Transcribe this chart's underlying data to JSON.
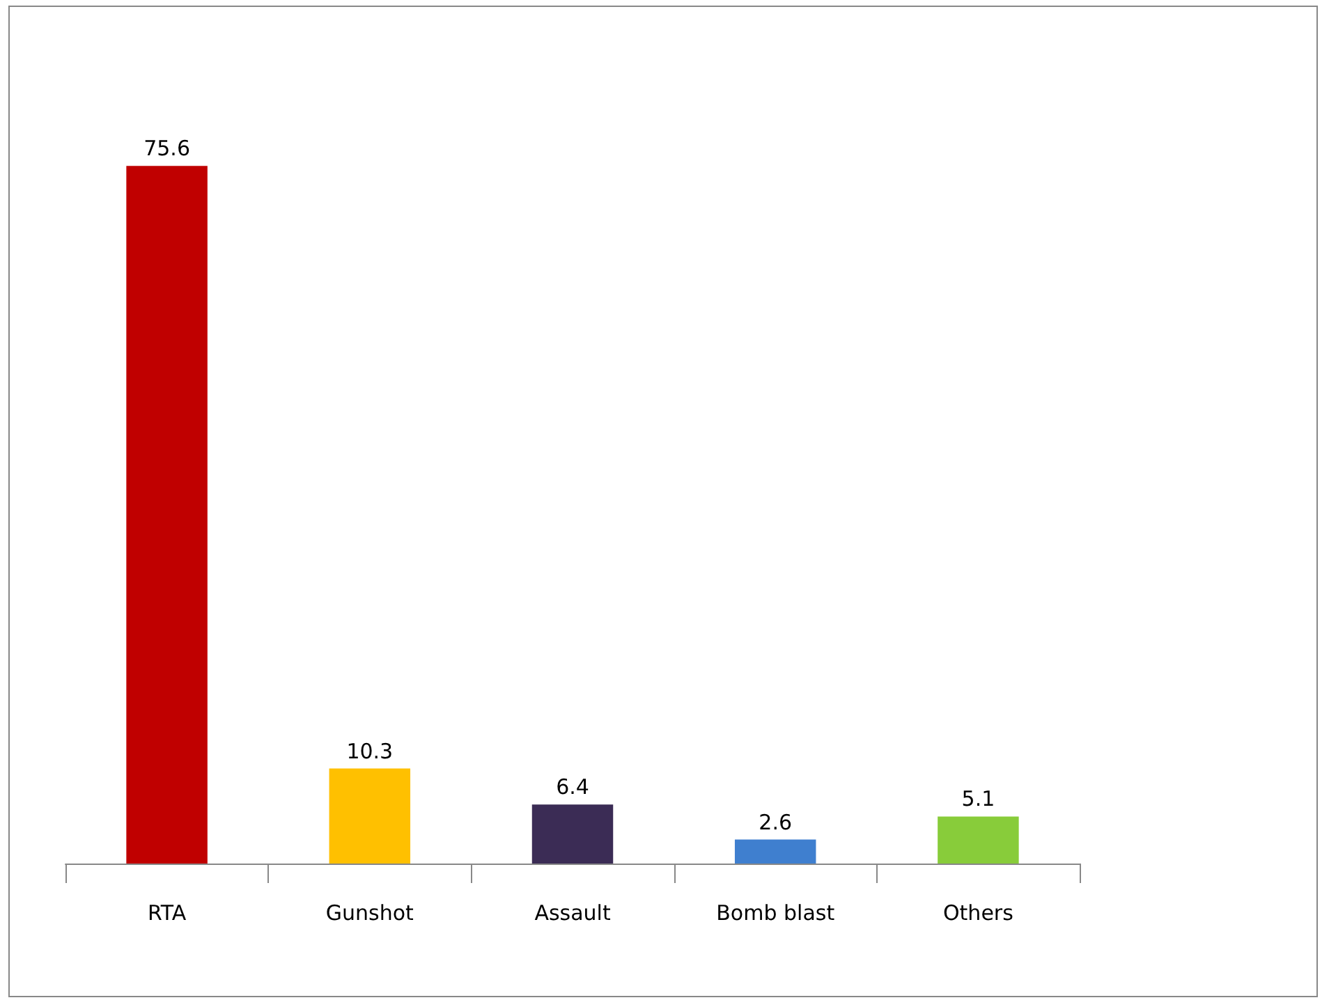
{
  "chart_data": {
    "type": "bar",
    "categories": [
      "RTA",
      "Gunshot",
      "Assault",
      "Bomb blast",
      "Others"
    ],
    "values": [
      75.6,
      10.3,
      6.4,
      2.6,
      5.1
    ],
    "colors": [
      "#c00000",
      "#ffc000",
      "#3b2c55",
      "#3f7fcf",
      "#88cc3a"
    ],
    "data_labels": true
  }
}
